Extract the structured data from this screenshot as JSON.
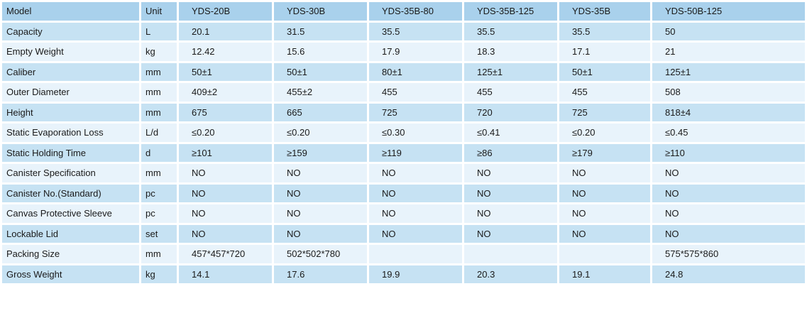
{
  "header": {
    "label": "Model",
    "unit": "Unit",
    "models": [
      "YDS-20B",
      "YDS-30B",
      "YDS-35B-80",
      "YDS-35B-125",
      "YDS-35B",
      "YDS-50B-125"
    ]
  },
  "rows": [
    {
      "label": "Capacity",
      "unit": "L",
      "values": [
        "20.1",
        "31.5",
        "35.5",
        "35.5",
        "35.5",
        "50"
      ]
    },
    {
      "label": "Empty Weight",
      "unit": "kg",
      "values": [
        "12.42",
        "15.6",
        "17.9",
        "18.3",
        "17.1",
        "21"
      ]
    },
    {
      "label": "Caliber",
      "unit": "mm",
      "values": [
        "50±1",
        "50±1",
        "80±1",
        "125±1",
        "50±1",
        "125±1"
      ]
    },
    {
      "label": "Outer Diameter",
      "unit": "mm",
      "values": [
        "409±2",
        "455±2",
        "455",
        "455",
        "455",
        "508"
      ]
    },
    {
      "label": "Height",
      "unit": "mm",
      "values": [
        "675",
        "665",
        "725",
        "720",
        "725",
        "818±4"
      ]
    },
    {
      "label": "Static Evaporation Loss",
      "unit": "L/d",
      "values": [
        "≤0.20",
        "≤0.20",
        "≤0.30",
        "≤0.41",
        "≤0.20",
        "≤0.45"
      ]
    },
    {
      "label": "Static Holding Time",
      "unit": "d",
      "values": [
        "≥101",
        "≥159",
        "≥119",
        "≥86",
        "≥179",
        "≥110"
      ]
    },
    {
      "label": "Canister Specification",
      "unit": "mm",
      "values": [
        "NO",
        "NO",
        "NO",
        "NO",
        "NO",
        "NO"
      ]
    },
    {
      "label": "Canister No.(Standard)",
      "unit": "pc",
      "values": [
        "NO",
        "NO",
        "NO",
        "NO",
        "NO",
        "NO"
      ]
    },
    {
      "label": "Canvas Protective Sleeve",
      "unit": "pc",
      "values": [
        "NO",
        "NO",
        "NO",
        "NO",
        "NO",
        "NO"
      ]
    },
    {
      "label": "Lockable Lid",
      "unit": "set",
      "values": [
        "NO",
        "NO",
        "NO",
        "NO",
        "NO",
        "NO"
      ]
    },
    {
      "label": "Packing Size",
      "unit": "mm",
      "values": [
        "457*457*720",
        "502*502*780",
        "",
        "",
        "",
        "575*575*860"
      ]
    },
    {
      "label": "Gross Weight",
      "unit": "kg",
      "values": [
        "14.1",
        "17.6",
        "19.9",
        "20.3",
        "19.1",
        "24.8"
      ]
    }
  ],
  "colors": {
    "header": "#a9d1ec",
    "row_dark": "#c6e2f3",
    "row_light": "#e8f3fb"
  }
}
